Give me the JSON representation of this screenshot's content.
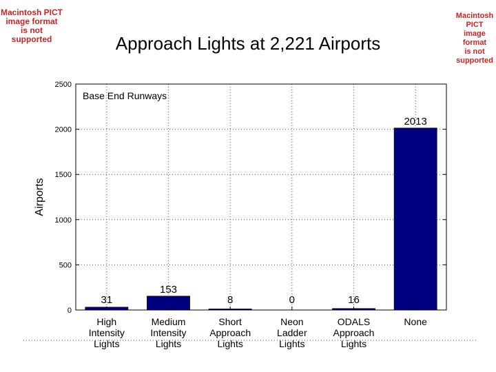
{
  "slide": {
    "title": "Approach Lights at 2,221 Airports",
    "pict_notice_left": [
      "Macintosh PICT",
      "image format",
      "is not supported"
    ],
    "pict_notice_right": [
      "Macintosh PICT",
      "image format",
      "is not supported"
    ]
  },
  "chart_data": {
    "type": "bar",
    "title": "Approach Lights at 2,221 Airports",
    "annotation": "Base End Runways",
    "xlabel": "",
    "ylabel": "Airports",
    "ylim": [
      0,
      2500
    ],
    "yticks": [
      0,
      500,
      1000,
      1500,
      2000,
      2500
    ],
    "grid": true,
    "categories": [
      [
        "High",
        "Intensity",
        "Lights"
      ],
      [
        "Medium",
        "Intensity",
        "Lights"
      ],
      [
        "Short",
        "Approach",
        "Lights"
      ],
      [
        "Neon",
        "Ladder",
        "Lights"
      ],
      [
        "ODALS",
        "Approach",
        "Lights"
      ],
      [
        "None"
      ]
    ],
    "values": [
      31,
      153,
      8,
      0,
      16,
      2013
    ],
    "value_labels": [
      "31",
      "153",
      "8",
      "0",
      "16",
      "2013"
    ],
    "bar_color": "#000080",
    "grid_color": "#555555"
  }
}
